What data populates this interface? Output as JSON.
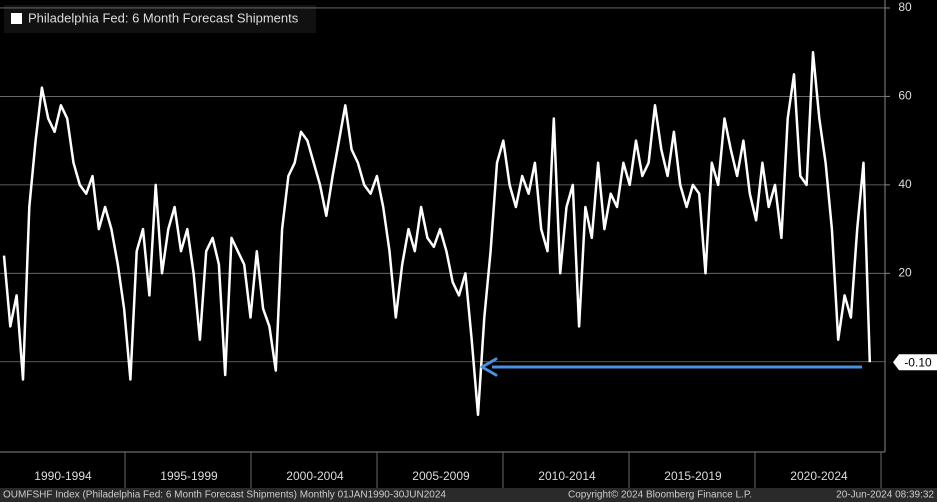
{
  "chart_data": {
    "type": "line",
    "legend_label": "Philadelphia Fed: 6 Month Forecast Shipments",
    "x_axis_labels": [
      "1990-1994",
      "1995-1999",
      "2000-2004",
      "2005-2009",
      "2010-2014",
      "2015-2019",
      "2020-2024"
    ],
    "series": [
      {
        "name": "Philadelphia Fed: 6 Month Forecast Shipments",
        "color": "#ffffff",
        "values": [
          24,
          8,
          15,
          -4,
          35,
          50,
          62,
          55,
          52,
          58,
          55,
          45,
          40,
          38,
          42,
          30,
          35,
          30,
          22,
          12,
          -4,
          25,
          30,
          15,
          40,
          20,
          30,
          35,
          25,
          30,
          20,
          5,
          25,
          28,
          22,
          -3,
          28,
          25,
          22,
          10,
          25,
          12,
          8,
          -2,
          30,
          42,
          45,
          52,
          50,
          45,
          40,
          33,
          42,
          50,
          58,
          48,
          45,
          40,
          38,
          42,
          35,
          25,
          10,
          22,
          30,
          25,
          35,
          28,
          26,
          30,
          25,
          18,
          15,
          20,
          5,
          -12,
          10,
          25,
          45,
          50,
          40,
          35,
          42,
          38,
          45,
          30,
          25,
          55,
          20,
          35,
          40,
          8,
          35,
          28,
          45,
          30,
          38,
          35,
          45,
          40,
          50,
          42,
          45,
          58,
          48,
          42,
          52,
          40,
          35,
          40,
          38,
          20,
          45,
          40,
          55,
          48,
          42,
          50,
          38,
          32,
          45,
          35,
          40,
          28,
          55,
          65,
          42,
          40,
          70,
          55,
          45,
          30,
          5,
          15,
          10,
          30,
          45,
          -0.1
        ],
        "last_value_label": "-0.10"
      }
    ],
    "ylim": [
      -20.4,
      81.8
    ],
    "yticks": [
      20,
      40,
      60,
      80
    ],
    "zero_line": true,
    "grid": true,
    "footer_left": "OUMFSHF Index (Philadelphia Fed: 6 Month Forecast Shipments)  Monthly 01JAN1990-30JUN2024",
    "footer_center": "Copyright© 2024 Bloomberg Finance L.P.",
    "footer_right": "20-Jun-2024 08:39:32"
  }
}
